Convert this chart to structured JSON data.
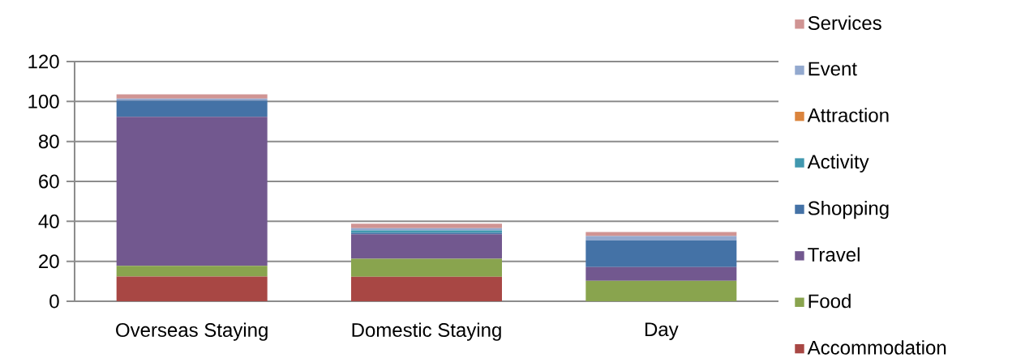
{
  "chart_data": {
    "type": "bar",
    "stacked": true,
    "categories": [
      "Overseas Staying",
      "Domestic Staying",
      "Day"
    ],
    "series": [
      {
        "name": "Accommodation",
        "color": "#a84744",
        "values": [
          12.4,
          12.3,
          0
        ]
      },
      {
        "name": "Food",
        "color": "#89a44e",
        "values": [
          5.3,
          9.0,
          10.2
        ]
      },
      {
        "name": "Travel",
        "color": "#72588f",
        "values": [
          74.6,
          12.2,
          6.9
        ]
      },
      {
        "name": "Shopping",
        "color": "#4472a6",
        "values": [
          8.1,
          0.8,
          13.4
        ]
      },
      {
        "name": "Activity",
        "color": "#4198af",
        "values": [
          0,
          1.2,
          0
        ]
      },
      {
        "name": "Attraction",
        "color": "#db843d",
        "values": [
          0,
          0,
          0
        ]
      },
      {
        "name": "Event",
        "color": "#93a9cf",
        "values": [
          1.1,
          1.1,
          2.1
        ]
      },
      {
        "name": "Services",
        "color": "#d09493",
        "values": [
          2.1,
          2.2,
          2.1
        ]
      }
    ],
    "ylim": [
      0,
      120
    ],
    "yticks": [
      0,
      20,
      40,
      60,
      80,
      100,
      120
    ],
    "grid": "y",
    "legend": "right"
  }
}
